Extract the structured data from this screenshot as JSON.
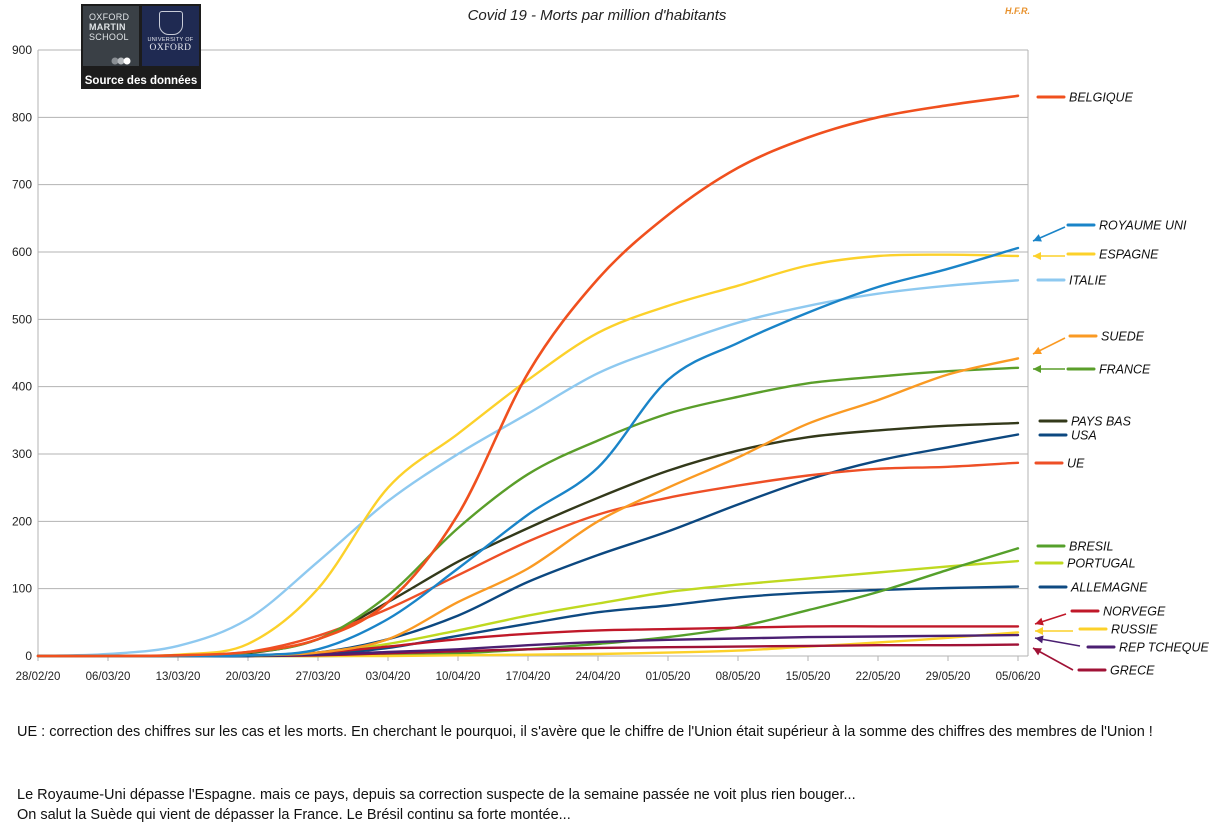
{
  "header": {
    "title": "Covid 19 - Morts par million d'habitants",
    "watermark": "H.F.R."
  },
  "logo": {
    "line1": "OXFORD",
    "line2": "MARTIN",
    "line3": "SCHOOL",
    "uni": "UNIVERSITY OF",
    "oxford": "OXFORD",
    "source": "Source des données"
  },
  "notes": {
    "n1": "UE : correction des chiffres sur les cas et les morts. En cherchant le pourquoi, il s'avère que le chiffre de l'Union était supérieur à la somme des chiffres des membres de l'Union !",
    "n2a": "Le Royaume-Uni dépasse l'Espagne. mais ce pays, depuis sa correction suspecte de la semaine passée ne voit plus rien bouger...",
    "n2b": "On salut la Suède qui vient de dépasser la France. Le Brésil continu sa forte montée..."
  },
  "chart_data": {
    "type": "line",
    "title": "Covid 19 - Morts par million d'habitants",
    "xlabel": "",
    "ylabel": "",
    "ylim": [
      0,
      900
    ],
    "yticks": [
      0,
      100,
      200,
      300,
      400,
      500,
      600,
      700,
      800,
      900
    ],
    "grid": true,
    "x_start_day": 0,
    "x_end_day": 99,
    "x_ticks": [
      {
        "day": 0,
        "label": "28/02/20"
      },
      {
        "day": 7,
        "label": "06/03/20"
      },
      {
        "day": 14,
        "label": "13/03/20"
      },
      {
        "day": 21,
        "label": "20/03/20"
      },
      {
        "day": 28,
        "label": "27/03/20"
      },
      {
        "day": 35,
        "label": "03/04/20"
      },
      {
        "day": 42,
        "label": "10/04/20"
      },
      {
        "day": 49,
        "label": "17/04/20"
      },
      {
        "day": 56,
        "label": "24/04/20"
      },
      {
        "day": 63,
        "label": "01/05/20"
      },
      {
        "day": 70,
        "label": "08/05/20"
      },
      {
        "day": 77,
        "label": "15/05/20"
      },
      {
        "day": 84,
        "label": "22/05/20"
      },
      {
        "day": 91,
        "label": "29/05/20"
      },
      {
        "day": 98,
        "label": "05/06/20"
      }
    ],
    "series_days": [
      0,
      7,
      14,
      21,
      28,
      35,
      42,
      49,
      56,
      63,
      70,
      77,
      84,
      91,
      98
    ],
    "series": [
      {
        "name": "BELGIQUE",
        "color": "#f0501e",
        "width": 2.6,
        "values": [
          0,
          0,
          1,
          6,
          25,
          80,
          210,
          420,
          560,
          655,
          725,
          770,
          800,
          818,
          832
        ]
      },
      {
        "name": "ROYAUME UNI",
        "color": "#1a84c8",
        "width": 2.4,
        "values": [
          0,
          0,
          0,
          1,
          10,
          55,
          130,
          210,
          280,
          410,
          465,
          510,
          548,
          575,
          606
        ]
      },
      {
        "name": "ESPAGNE",
        "color": "#fcd12a",
        "width": 2.4,
        "values": [
          0,
          0,
          2,
          18,
          100,
          250,
          330,
          410,
          480,
          520,
          550,
          580,
          594,
          596,
          594
        ]
      },
      {
        "name": "ITALIE",
        "color": "#8ec9f0",
        "width": 2.4,
        "values": [
          0,
          3,
          15,
          55,
          140,
          230,
          300,
          360,
          420,
          460,
          495,
          520,
          538,
          550,
          558
        ]
      },
      {
        "name": "SUEDE",
        "color": "#fa9a23",
        "width": 2.4,
        "values": [
          0,
          0,
          0,
          1,
          5,
          25,
          80,
          130,
          200,
          250,
          295,
          345,
          380,
          418,
          442
        ]
      },
      {
        "name": "FRANCE",
        "color": "#5a9e2a",
        "width": 2.4,
        "values": [
          0,
          0,
          1,
          5,
          25,
          90,
          190,
          270,
          320,
          360,
          385,
          405,
          415,
          423,
          428
        ]
      },
      {
        "name": "PAYS BAS",
        "color": "#33391a",
        "width": 2.4,
        "values": [
          0,
          0,
          0,
          4,
          25,
          80,
          140,
          190,
          235,
          275,
          305,
          325,
          335,
          342,
          346
        ]
      },
      {
        "name": "USA",
        "color": "#0c4880",
        "width": 2.4,
        "values": [
          0,
          0,
          0,
          0,
          5,
          25,
          60,
          110,
          150,
          185,
          225,
          262,
          290,
          310,
          329
        ]
      },
      {
        "name": "UE",
        "color": "#ee4f26",
        "width": 2.4,
        "values": [
          0,
          0,
          1,
          6,
          30,
          70,
          120,
          170,
          210,
          235,
          253,
          268,
          278,
          281,
          287
        ]
      },
      {
        "name": "BRESIL",
        "color": "#55a02b",
        "width": 2.4,
        "values": [
          0,
          0,
          0,
          0,
          0,
          1,
          4,
          10,
          18,
          28,
          43,
          68,
          95,
          128,
          160
        ]
      },
      {
        "name": "PORTUGAL",
        "color": "#bfd920",
        "width": 2.4,
        "values": [
          0,
          0,
          0,
          1,
          5,
          18,
          38,
          60,
          78,
          95,
          106,
          115,
          124,
          133,
          141
        ]
      },
      {
        "name": "ALLEMAGNE",
        "color": "#0e4a82",
        "width": 2.4,
        "values": [
          0,
          0,
          0,
          0,
          2,
          12,
          30,
          48,
          65,
          75,
          87,
          94,
          98,
          101,
          103
        ]
      },
      {
        "name": "NORVEGE",
        "color": "#c01829",
        "width": 2.4,
        "values": [
          0,
          0,
          0,
          1,
          5,
          14,
          25,
          33,
          38,
          40,
          42,
          44,
          44,
          44,
          44
        ]
      },
      {
        "name": "RUSSIE",
        "color": "#fcd12a",
        "width": 2.4,
        "values": [
          0,
          0,
          0,
          0,
          0,
          0,
          1,
          2,
          3,
          5,
          8,
          14,
          20,
          27,
          35
        ]
      },
      {
        "name": "REP TCHEQUE",
        "color": "#4b1f72",
        "width": 2.4,
        "values": [
          0,
          0,
          0,
          0,
          2,
          6,
          10,
          16,
          21,
          24,
          26,
          28,
          29,
          30,
          31
        ]
      },
      {
        "name": "GRECE",
        "color": "#a01236",
        "width": 2.4,
        "values": [
          0,
          0,
          0,
          0,
          1,
          4,
          7,
          10,
          12,
          13,
          14,
          15,
          16,
          16,
          17
        ]
      }
    ],
    "legend": [
      {
        "name": "BELGIQUE",
        "arrow": false
      },
      {
        "name": "ROYAUME UNI",
        "arrow": true
      },
      {
        "name": "ESPAGNE",
        "arrow": true
      },
      {
        "name": "ITALIE",
        "arrow": false
      },
      {
        "name": "SUEDE",
        "arrow": true
      },
      {
        "name": "FRANCE",
        "arrow": true
      },
      {
        "name": "PAYS BAS",
        "arrow": false
      },
      {
        "name": "USA",
        "arrow": false
      },
      {
        "name": "UE",
        "arrow": false
      },
      {
        "name": "BRESIL",
        "arrow": false
      },
      {
        "name": "PORTUGAL",
        "arrow": false
      },
      {
        "name": "ALLEMAGNE",
        "arrow": false
      },
      {
        "name": "NORVEGE",
        "arrow": true
      },
      {
        "name": "RUSSIE",
        "arrow": true
      },
      {
        "name": "REP TCHEQUE",
        "arrow": true
      },
      {
        "name": "GRECE",
        "arrow": true
      }
    ]
  }
}
